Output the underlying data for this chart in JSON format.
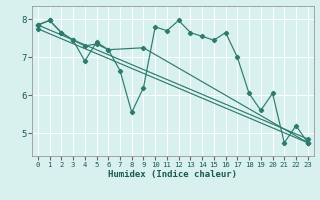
{
  "bg_color": "#d8f0ee",
  "line_color": "#2e7b6e",
  "grid_color": "#ffffff",
  "xlabel": "Humidex (Indice chaleur)",
  "xlim": [
    -0.5,
    23.5
  ],
  "ylim": [
    4.4,
    8.35
  ],
  "yticks": [
    5,
    6,
    7,
    8
  ],
  "xticks": [
    0,
    1,
    2,
    3,
    4,
    5,
    6,
    7,
    8,
    9,
    10,
    11,
    12,
    13,
    14,
    15,
    16,
    17,
    18,
    19,
    20,
    21,
    22,
    23
  ],
  "series": [
    {
      "x": [
        0,
        1,
        2,
        3,
        4,
        5,
        6,
        7,
        8,
        9,
        10,
        11,
        12,
        13,
        14,
        15,
        16,
        17,
        18,
        19,
        20,
        21,
        22,
        23
      ],
      "y": [
        7.85,
        7.97,
        7.65,
        7.45,
        6.9,
        7.4,
        7.2,
        6.65,
        5.55,
        6.2,
        7.8,
        7.7,
        7.97,
        7.65,
        7.55,
        7.45,
        7.65,
        7.0,
        6.05,
        5.6,
        6.05,
        4.75,
        5.2,
        4.75
      ]
    },
    {
      "x": [
        0,
        1,
        2,
        3,
        4,
        5,
        6,
        9,
        23
      ],
      "y": [
        7.85,
        7.97,
        7.65,
        7.45,
        7.3,
        7.35,
        7.2,
        7.25,
        4.75
      ]
    },
    {
      "x": [
        0,
        23
      ],
      "y": [
        7.85,
        4.85
      ]
    },
    {
      "x": [
        0,
        23
      ],
      "y": [
        7.75,
        4.75
      ]
    }
  ]
}
